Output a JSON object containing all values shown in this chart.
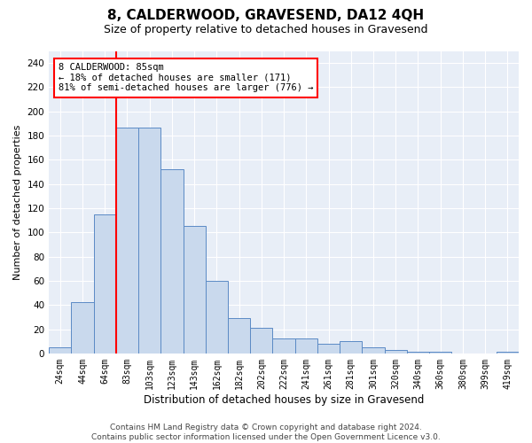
{
  "title": "8, CALDERWOOD, GRAVESEND, DA12 4QH",
  "subtitle": "Size of property relative to detached houses in Gravesend",
  "xlabel": "Distribution of detached houses by size in Gravesend",
  "ylabel": "Number of detached properties",
  "categories": [
    "24sqm",
    "44sqm",
    "64sqm",
    "83sqm",
    "103sqm",
    "123sqm",
    "143sqm",
    "162sqm",
    "182sqm",
    "202sqm",
    "222sqm",
    "241sqm",
    "261sqm",
    "281sqm",
    "301sqm",
    "320sqm",
    "340sqm",
    "360sqm",
    "380sqm",
    "399sqm",
    "419sqm"
  ],
  "bar_heights": [
    5,
    42,
    115,
    187,
    187,
    152,
    105,
    60,
    29,
    21,
    12,
    12,
    8,
    10,
    5,
    3,
    1,
    1,
    0,
    0,
    1
  ],
  "bar_color": "#c9d9ed",
  "bar_edgecolor": "#5b8ac5",
  "annotation_text": "8 CALDERWOOD: 85sqm\n← 18% of detached houses are smaller (171)\n81% of semi-detached houses are larger (776) →",
  "annotation_box_color": "white",
  "annotation_box_edgecolor": "red",
  "vline_color": "red",
  "vline_x": 2.5,
  "ylim": [
    0,
    250
  ],
  "yticks": [
    0,
    20,
    40,
    60,
    80,
    100,
    120,
    140,
    160,
    180,
    200,
    220,
    240
  ],
  "background_color": "#e8eef7",
  "footer_text": "Contains HM Land Registry data © Crown copyright and database right 2024.\nContains public sector information licensed under the Open Government Licence v3.0.",
  "title_fontsize": 11,
  "subtitle_fontsize": 9,
  "xlabel_fontsize": 8.5,
  "ylabel_fontsize": 8,
  "footer_fontsize": 6.5
}
